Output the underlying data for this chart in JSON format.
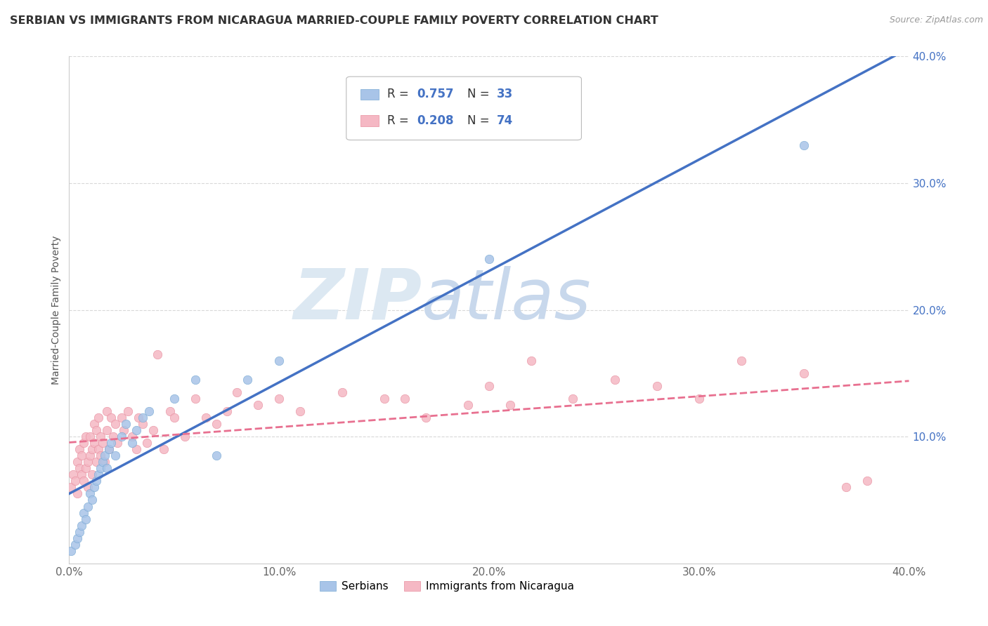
{
  "title": "SERBIAN VS IMMIGRANTS FROM NICARAGUA MARRIED-COUPLE FAMILY POVERTY CORRELATION CHART",
  "source": "Source: ZipAtlas.com",
  "ylabel": "Married-Couple Family Poverty",
  "xlim": [
    0.0,
    0.4
  ],
  "ylim": [
    0.0,
    0.4
  ],
  "xticks": [
    0.0,
    0.1,
    0.2,
    0.3,
    0.4
  ],
  "yticks": [
    0.1,
    0.2,
    0.3,
    0.4
  ],
  "xticklabels": [
    "0.0%",
    "10.0%",
    "20.0%",
    "30.0%",
    "40.0%"
  ],
  "yticklabels": [
    "10.0%",
    "20.0%",
    "30.0%",
    "40.0%"
  ],
  "serbian_color": "#a8c4e8",
  "serbian_edge_color": "#7aaad4",
  "nicaragua_color": "#f5b8c4",
  "nicaragua_edge_color": "#e890a0",
  "serbian_line_color": "#4472c4",
  "nicaragua_line_color": "#e87090",
  "tick_color_right": "#4472c4",
  "serbian_R": "0.757",
  "serbian_N": "33",
  "nicaragua_R": "0.208",
  "nicaragua_N": "74",
  "legend_labels": [
    "Serbians",
    "Immigrants from Nicaragua"
  ],
  "background_color": "#ffffff",
  "grid_color": "#d8d8d8",
  "watermark_zip_color": "#c8d8e8",
  "watermark_atlas_color": "#b8c8e0",
  "serb_x": [
    0.001,
    0.003,
    0.004,
    0.005,
    0.006,
    0.007,
    0.008,
    0.009,
    0.01,
    0.011,
    0.012,
    0.013,
    0.014,
    0.015,
    0.016,
    0.017,
    0.018,
    0.019,
    0.02,
    0.022,
    0.025,
    0.027,
    0.03,
    0.032,
    0.035,
    0.038,
    0.05,
    0.06,
    0.07,
    0.085,
    0.1,
    0.2,
    0.35
  ],
  "serb_y": [
    0.01,
    0.015,
    0.02,
    0.025,
    0.03,
    0.04,
    0.035,
    0.045,
    0.055,
    0.05,
    0.06,
    0.065,
    0.07,
    0.075,
    0.08,
    0.085,
    0.075,
    0.09,
    0.095,
    0.085,
    0.1,
    0.11,
    0.095,
    0.105,
    0.115,
    0.12,
    0.13,
    0.145,
    0.085,
    0.145,
    0.16,
    0.24,
    0.33
  ],
  "nic_x": [
    0.001,
    0.002,
    0.003,
    0.004,
    0.004,
    0.005,
    0.005,
    0.006,
    0.006,
    0.007,
    0.007,
    0.008,
    0.008,
    0.009,
    0.009,
    0.01,
    0.01,
    0.011,
    0.011,
    0.012,
    0.012,
    0.013,
    0.013,
    0.014,
    0.014,
    0.015,
    0.015,
    0.016,
    0.017,
    0.018,
    0.018,
    0.019,
    0.02,
    0.021,
    0.022,
    0.023,
    0.025,
    0.026,
    0.028,
    0.03,
    0.032,
    0.033,
    0.035,
    0.037,
    0.04,
    0.042,
    0.045,
    0.048,
    0.05,
    0.055,
    0.06,
    0.065,
    0.07,
    0.075,
    0.08,
    0.09,
    0.1,
    0.11,
    0.13,
    0.15,
    0.16,
    0.17,
    0.19,
    0.2,
    0.21,
    0.22,
    0.24,
    0.26,
    0.28,
    0.3,
    0.32,
    0.35,
    0.37,
    0.38
  ],
  "nic_y": [
    0.06,
    0.07,
    0.065,
    0.08,
    0.055,
    0.075,
    0.09,
    0.07,
    0.085,
    0.065,
    0.095,
    0.075,
    0.1,
    0.08,
    0.06,
    0.085,
    0.1,
    0.09,
    0.07,
    0.095,
    0.11,
    0.08,
    0.105,
    0.09,
    0.115,
    0.085,
    0.1,
    0.095,
    0.08,
    0.105,
    0.12,
    0.09,
    0.115,
    0.1,
    0.11,
    0.095,
    0.115,
    0.105,
    0.12,
    0.1,
    0.09,
    0.115,
    0.11,
    0.095,
    0.105,
    0.165,
    0.09,
    0.12,
    0.115,
    0.1,
    0.13,
    0.115,
    0.11,
    0.12,
    0.135,
    0.125,
    0.13,
    0.12,
    0.135,
    0.13,
    0.13,
    0.115,
    0.125,
    0.14,
    0.125,
    0.16,
    0.13,
    0.145,
    0.14,
    0.13,
    0.16,
    0.15,
    0.06,
    0.065
  ]
}
